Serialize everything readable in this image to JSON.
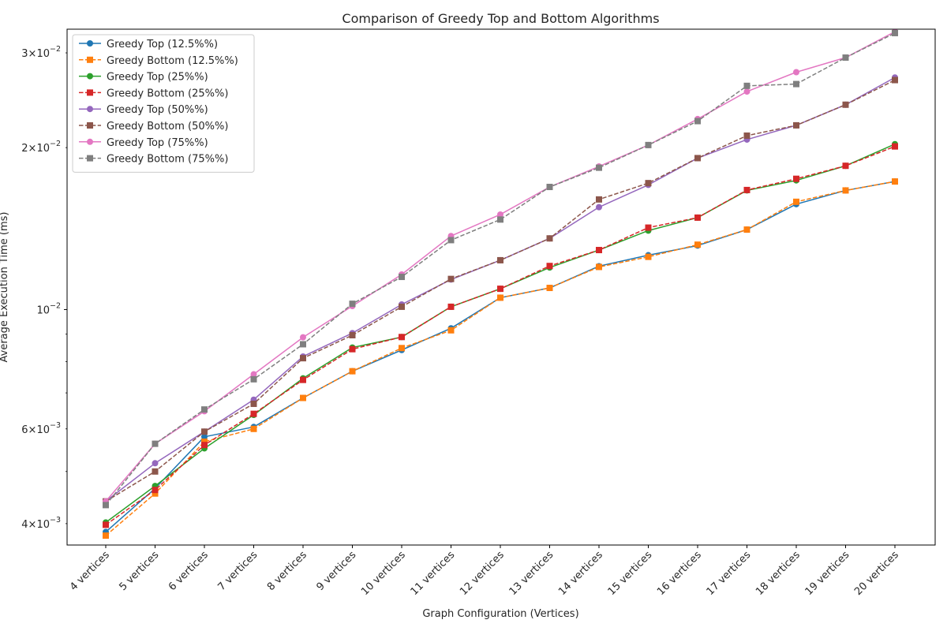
{
  "chart_data": {
    "type": "line",
    "title": "Comparison of Greedy Top and Bottom Algorithms",
    "xlabel": "Graph Configuration (Vertices)",
    "ylabel": "Average Execution Time (ms)",
    "yscale": "log",
    "ylim": [
      0.00365,
      0.0332
    ],
    "yticks": [
      {
        "value": 0.004,
        "mantissa": "4",
        "exp": "−3"
      },
      {
        "value": 0.006,
        "mantissa": "6",
        "exp": "−3"
      },
      {
        "value": 0.01,
        "mantissa": "",
        "exp": "−2"
      },
      {
        "value": 0.02,
        "mantissa": "2",
        "exp": "−2"
      },
      {
        "value": 0.03,
        "mantissa": "3",
        "exp": "−2"
      }
    ],
    "categories": [
      "4 vertices",
      "5 vertices",
      "6 vertices",
      "7 vertices",
      "8 vertices",
      "9 vertices",
      "10 vertices",
      "11 vertices",
      "12 vertices",
      "13 vertices",
      "14 vertices",
      "15 vertices",
      "16 vertices",
      "17 vertices",
      "18 vertices",
      "19 vertices",
      "20 vertices"
    ],
    "grid": false,
    "legend_position": "upper-left",
    "series": [
      {
        "name": "Greedy Top (12.5%%)",
        "color": "#1f77b4",
        "dash": "solid",
        "marker": "circle",
        "values": [
          0.00386,
          0.00465,
          0.0058,
          0.00605,
          0.00685,
          0.00768,
          0.00841,
          0.00923,
          0.01052,
          0.01097,
          0.01204,
          0.01262,
          0.01315,
          0.01408,
          0.0157,
          0.01665,
          0.0173
        ]
      },
      {
        "name": "Greedy Bottom (12.5%%)",
        "color": "#ff7f0e",
        "dash": "dashed",
        "marker": "square",
        "values": [
          0.0038,
          0.00455,
          0.00568,
          0.006,
          0.00685,
          0.00768,
          0.00848,
          0.00915,
          0.01052,
          0.01097,
          0.012,
          0.01253,
          0.0132,
          0.01408,
          0.01586,
          0.01665,
          0.0173
        ]
      },
      {
        "name": "Greedy Top (25%%)",
        "color": "#2ca02c",
        "dash": "solid",
        "marker": "circle",
        "values": [
          0.00402,
          0.0047,
          0.00552,
          0.00637,
          0.00745,
          0.0085,
          0.00889,
          0.01012,
          0.01093,
          0.01197,
          0.0129,
          0.01402,
          0.01482,
          0.01665,
          0.01738,
          0.0185,
          0.0203
        ]
      },
      {
        "name": "Greedy Bottom (25%%)",
        "color": "#d62728",
        "dash": "dashed",
        "marker": "square",
        "values": [
          0.00398,
          0.00462,
          0.0056,
          0.0064,
          0.0074,
          0.00844,
          0.00889,
          0.01012,
          0.01093,
          0.01205,
          0.0129,
          0.0142,
          0.01482,
          0.01668,
          0.0175,
          0.0185,
          0.0201
        ]
      },
      {
        "name": "Greedy Top (50%%)",
        "color": "#9467bd",
        "dash": "solid",
        "marker": "circle",
        "values": [
          0.0044,
          0.00518,
          0.00593,
          0.0068,
          0.00818,
          0.00904,
          0.01022,
          0.01137,
          0.01235,
          0.01356,
          0.0155,
          0.01705,
          0.01912,
          0.0207,
          0.022,
          0.02403,
          0.027
        ]
      },
      {
        "name": "Greedy Bottom (50%%)",
        "color": "#8c564b",
        "dash": "dashed",
        "marker": "square",
        "values": [
          0.0044,
          0.005,
          0.00593,
          0.00668,
          0.00812,
          0.00896,
          0.01012,
          0.0114,
          0.01235,
          0.01356,
          0.01602,
          0.01718,
          0.01912,
          0.02105,
          0.022,
          0.02403,
          0.0267
        ]
      },
      {
        "name": "Greedy Top (75%%)",
        "color": "#e377c2",
        "dash": "solid",
        "marker": "circle",
        "values": [
          0.0044,
          0.00563,
          0.00647,
          0.00758,
          0.00888,
          0.01015,
          0.01162,
          0.0137,
          0.01502,
          0.0169,
          0.01845,
          0.02022,
          0.0226,
          0.02542,
          0.02762,
          0.0294,
          0.03285
        ]
      },
      {
        "name": "Greedy Bottom (75%%)",
        "color": "#7f7f7f",
        "dash": "dashed",
        "marker": "square",
        "values": [
          0.00433,
          0.00563,
          0.00652,
          0.00742,
          0.00862,
          0.01025,
          0.0115,
          0.01346,
          0.0147,
          0.0169,
          0.01835,
          0.02022,
          0.0224,
          0.02605,
          0.02625,
          0.0294,
          0.03265
        ]
      }
    ]
  }
}
